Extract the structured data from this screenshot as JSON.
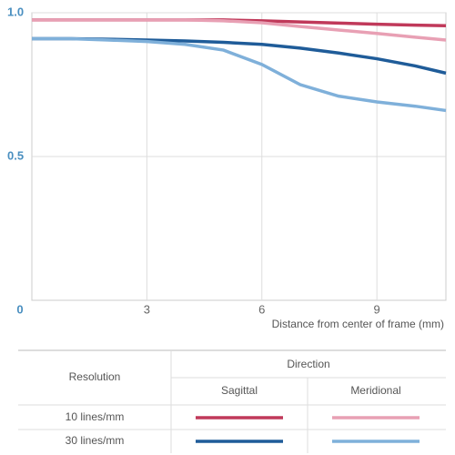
{
  "chart_data": {
    "type": "line",
    "x_label": "Distance from center of frame (mm)",
    "x": [
      0,
      1,
      2,
      3,
      4,
      5,
      6,
      7,
      8,
      9,
      10,
      10.8
    ],
    "series": [
      {
        "color": "#c0395a",
        "values": [
          0.975,
          0.975,
          0.975,
          0.975,
          0.975,
          0.975,
          0.972,
          0.968,
          0.964,
          0.96,
          0.957,
          0.955
        ]
      },
      {
        "color": "#e8a0b4",
        "values": [
          0.975,
          0.975,
          0.975,
          0.975,
          0.975,
          0.972,
          0.965,
          0.952,
          0.94,
          0.928,
          0.915,
          0.905
        ]
      },
      {
        "color": "#1f5c99",
        "values": [
          0.91,
          0.91,
          0.908,
          0.905,
          0.902,
          0.897,
          0.89,
          0.877,
          0.86,
          0.84,
          0.815,
          0.79
        ]
      },
      {
        "color": "#7fb0da",
        "values": [
          0.91,
          0.91,
          0.905,
          0.9,
          0.89,
          0.87,
          0.82,
          0.75,
          0.71,
          0.69,
          0.675,
          0.66
        ]
      }
    ],
    "xlim": [
      0,
      10.8
    ],
    "ylim": [
      0,
      1
    ],
    "xticks": [
      0,
      3,
      6,
      9
    ],
    "yticks": [
      0.5,
      {
        "value": 1,
        "label": "1.0"
      }
    ],
    "grid": true,
    "legend": {
      "row_header": "Resolution",
      "column_header": "Direction",
      "columns": [
        "Sagittal",
        "Meridional"
      ],
      "rows": [
        "10 lines/mm",
        "30 lines/mm"
      ]
    }
  }
}
